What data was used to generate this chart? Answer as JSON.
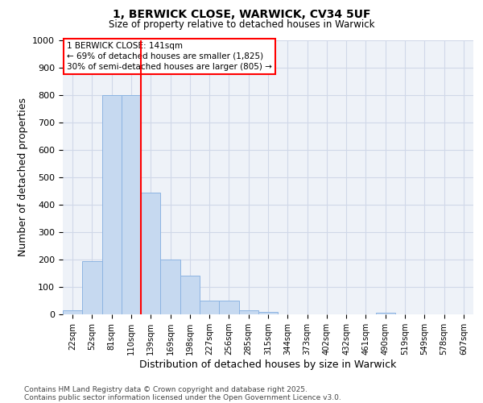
{
  "title1": "1, BERWICK CLOSE, WARWICK, CV34 5UF",
  "title2": "Size of property relative to detached houses in Warwick",
  "xlabel": "Distribution of detached houses by size in Warwick",
  "ylabel": "Number of detached properties",
  "categories": [
    "22sqm",
    "52sqm",
    "81sqm",
    "110sqm",
    "139sqm",
    "169sqm",
    "198sqm",
    "227sqm",
    "256sqm",
    "285sqm",
    "315sqm",
    "344sqm",
    "373sqm",
    "402sqm",
    "432sqm",
    "461sqm",
    "490sqm",
    "519sqm",
    "549sqm",
    "578sqm",
    "607sqm"
  ],
  "values": [
    15,
    195,
    800,
    800,
    445,
    200,
    140,
    50,
    50,
    15,
    10,
    0,
    0,
    0,
    0,
    0,
    5,
    0,
    0,
    0,
    0
  ],
  "bar_color": "#c6d9f0",
  "bar_edgecolor": "#8db4e2",
  "annotation_text_line1": "1 BERWICK CLOSE: 141sqm",
  "annotation_text_line2": "← 69% of detached houses are smaller (1,825)",
  "annotation_text_line3": "30% of semi-detached houses are larger (805) →",
  "annotation_box_color": "white",
  "annotation_box_edgecolor": "red",
  "vline_color": "red",
  "vline_bar_index": 3,
  "ylim": [
    0,
    1000
  ],
  "yticks": [
    0,
    100,
    200,
    300,
    400,
    500,
    600,
    700,
    800,
    900,
    1000
  ],
  "grid_color": "#d0d8e8",
  "background_color": "#eef2f8",
  "footnote1": "Contains HM Land Registry data © Crown copyright and database right 2025.",
  "footnote2": "Contains public sector information licensed under the Open Government Licence v3.0."
}
